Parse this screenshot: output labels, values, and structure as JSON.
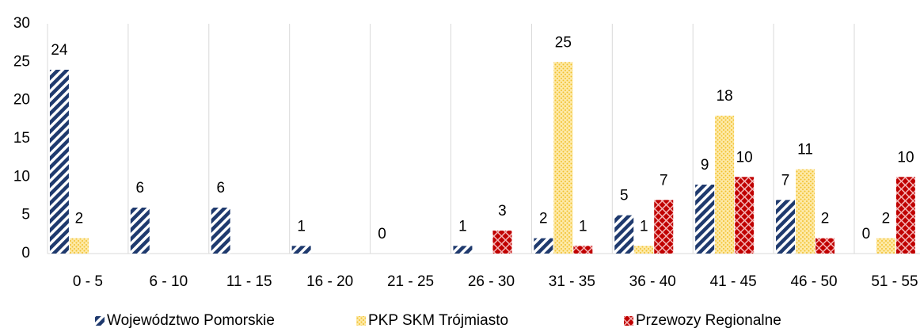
{
  "chart_data": {
    "type": "bar",
    "categories": [
      "0 - 5",
      "6 - 10",
      "11 - 15",
      "16 - 20",
      "21 - 25",
      "26 - 30",
      "31 - 35",
      "36 - 40",
      "41 - 45",
      "46 - 50",
      "51 - 55"
    ],
    "series": [
      {
        "name": "Województwo Pomorskie",
        "color": "#1f3a6e",
        "values": [
          24,
          6,
          6,
          1,
          0,
          1,
          2,
          5,
          9,
          7,
          0
        ]
      },
      {
        "name": "PKP SKM Trójmiasto",
        "color": "#f2c12e",
        "values": [
          2,
          null,
          null,
          null,
          null,
          null,
          25,
          1,
          18,
          11,
          2
        ]
      },
      {
        "name": "Przewozy Regionalne",
        "color": "#c00000",
        "values": [
          null,
          null,
          null,
          null,
          null,
          3,
          1,
          7,
          10,
          2,
          10
        ]
      }
    ],
    "ylim": [
      0,
      30
    ],
    "yticks": [
      0,
      5,
      10,
      15,
      20,
      25,
      30
    ],
    "legend": "bottom"
  }
}
